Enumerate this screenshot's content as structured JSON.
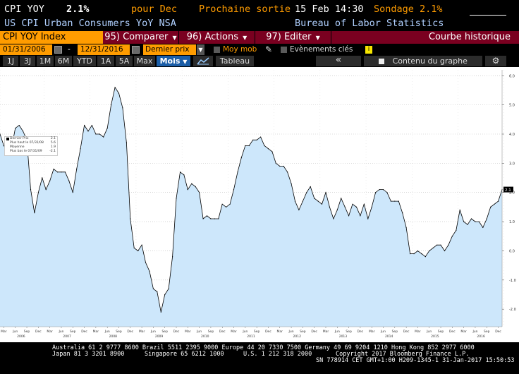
{
  "header": {
    "ticker": "CPI YOY",
    "last_value": "2.1%",
    "period": "pour Dec",
    "next_release_label": "Prochaine sortie",
    "next_release": "15 Feb 14:30",
    "survey_label": "Sondage",
    "survey_value": "2.1%",
    "description": "US CPI Urban Consumers YoY NSA",
    "source": "Bureau of Labor Statistics"
  },
  "menubar": {
    "ticker": "CPI YOY Index",
    "items": [
      {
        "num": "95)",
        "label": "Comparer"
      },
      {
        "num": "96)",
        "label": "Actions"
      },
      {
        "num": "97)",
        "label": "Editer"
      }
    ],
    "right": "Courbe historique"
  },
  "datebar": {
    "start_date": "01/31/2006",
    "end_date": "12/31/2016",
    "separator": "-",
    "price_mode": "Dernier prix",
    "moving_avg": "Moy mob",
    "events": "Evènements clés",
    "info_icon": "i"
  },
  "toolbar": {
    "periods": [
      "1J",
      "3J",
      "1M",
      "6M",
      "YTD",
      "1A",
      "5A",
      "Max"
    ],
    "frequency": "Mois",
    "table_label": "Tableau",
    "back_label": "«",
    "content_label": "Contenu du graphe",
    "settings_icon": "gear-icon"
  },
  "legend": {
    "rows": [
      {
        "label": "Dernier Prix",
        "value": "2.1"
      },
      {
        "label": "Plus haut le 07/31/08",
        "value": "5.6"
      },
      {
        "label": "Moyenne",
        "value": "1.9"
      },
      {
        "label": "Plus bas le 07/31/09",
        "value": "-2.1"
      }
    ]
  },
  "chart_data": {
    "type": "area",
    "title": "",
    "ylim": [
      -2.6,
      6.2
    ],
    "y_ticks": [
      "6.0",
      "5.0",
      "4.0",
      "3.0",
      "2.0",
      "1.0",
      "0.0",
      "-1.0",
      "-2.0"
    ],
    "y_tick_values": [
      6,
      5,
      4,
      3,
      2,
      1,
      0,
      -1,
      -2
    ],
    "month_labels": [
      "Mar",
      "Jun",
      "Sep",
      "Dec"
    ],
    "year_labels": [
      "2006",
      "2007",
      "2008",
      "2009",
      "2010",
      "2011",
      "2012",
      "2013",
      "2014",
      "2015",
      "2016"
    ],
    "last_value_label": "2.1",
    "fill_color": "#cde7fb",
    "line_color": "#000000",
    "series": [
      {
        "values": [
          4.0,
          3.6,
          3.4,
          3.5,
          4.2,
          4.3,
          4.1,
          3.8,
          2.1,
          1.3,
          2.0,
          2.5,
          2.1,
          2.4,
          2.8,
          2.7,
          2.7,
          2.7,
          2.4,
          2.0,
          2.8,
          3.5,
          4.3,
          4.1,
          4.3,
          4.0,
          4.0,
          3.9,
          4.2,
          5.0,
          5.6,
          5.4,
          4.9,
          3.7,
          1.1,
          0.1,
          0.0,
          0.2,
          -0.4,
          -0.7,
          -1.3,
          -1.4,
          -2.1,
          -1.5,
          -1.3,
          -0.2,
          1.8,
          2.7,
          2.6,
          2.1,
          2.3,
          2.2,
          2.0,
          1.1,
          1.2,
          1.1,
          1.1,
          1.1,
          1.6,
          1.5,
          1.6,
          2.1,
          2.7,
          3.2,
          3.6,
          3.6,
          3.8,
          3.8,
          3.9,
          3.6,
          3.5,
          3.4,
          3.0,
          2.9,
          2.9,
          2.7,
          2.3,
          1.7,
          1.4,
          1.7,
          2.0,
          2.2,
          1.8,
          1.7,
          1.6,
          2.0,
          1.5,
          1.1,
          1.4,
          1.8,
          1.5,
          1.2,
          1.6,
          1.5,
          1.2,
          1.6,
          1.1,
          1.5,
          2.0,
          2.1,
          2.1,
          2.0,
          1.7,
          1.7,
          1.7,
          1.3,
          0.8,
          -0.1,
          -0.1,
          0.0,
          -0.1,
          -0.2,
          0.0,
          0.1,
          0.2,
          0.2,
          0.0,
          0.2,
          0.5,
          0.7,
          1.4,
          1.0,
          0.9,
          1.1,
          1.0,
          1.0,
          0.8,
          1.1,
          1.5,
          1.6,
          1.7,
          2.1
        ]
      }
    ]
  },
  "footer": {
    "line1": "Australia 61 2 9777 8600 Brazil 5511 2395 9000 Europe 44 20 7330 7500 Germany 49 69 9204 1210 Hong Kong 852 2977 6000",
    "line2a": "Japan 81 3 3201 8900",
    "line2b": "Singapore 65 6212 1000",
    "line2c": "U.S. 1 212 318 2000",
    "line2d": "Copyright 2017 Bloomberg Finance L.P.",
    "line3": "SN 778914 CET  GMT+1:00 H209-1345-1 31-Jan-2017 15:50:53"
  }
}
